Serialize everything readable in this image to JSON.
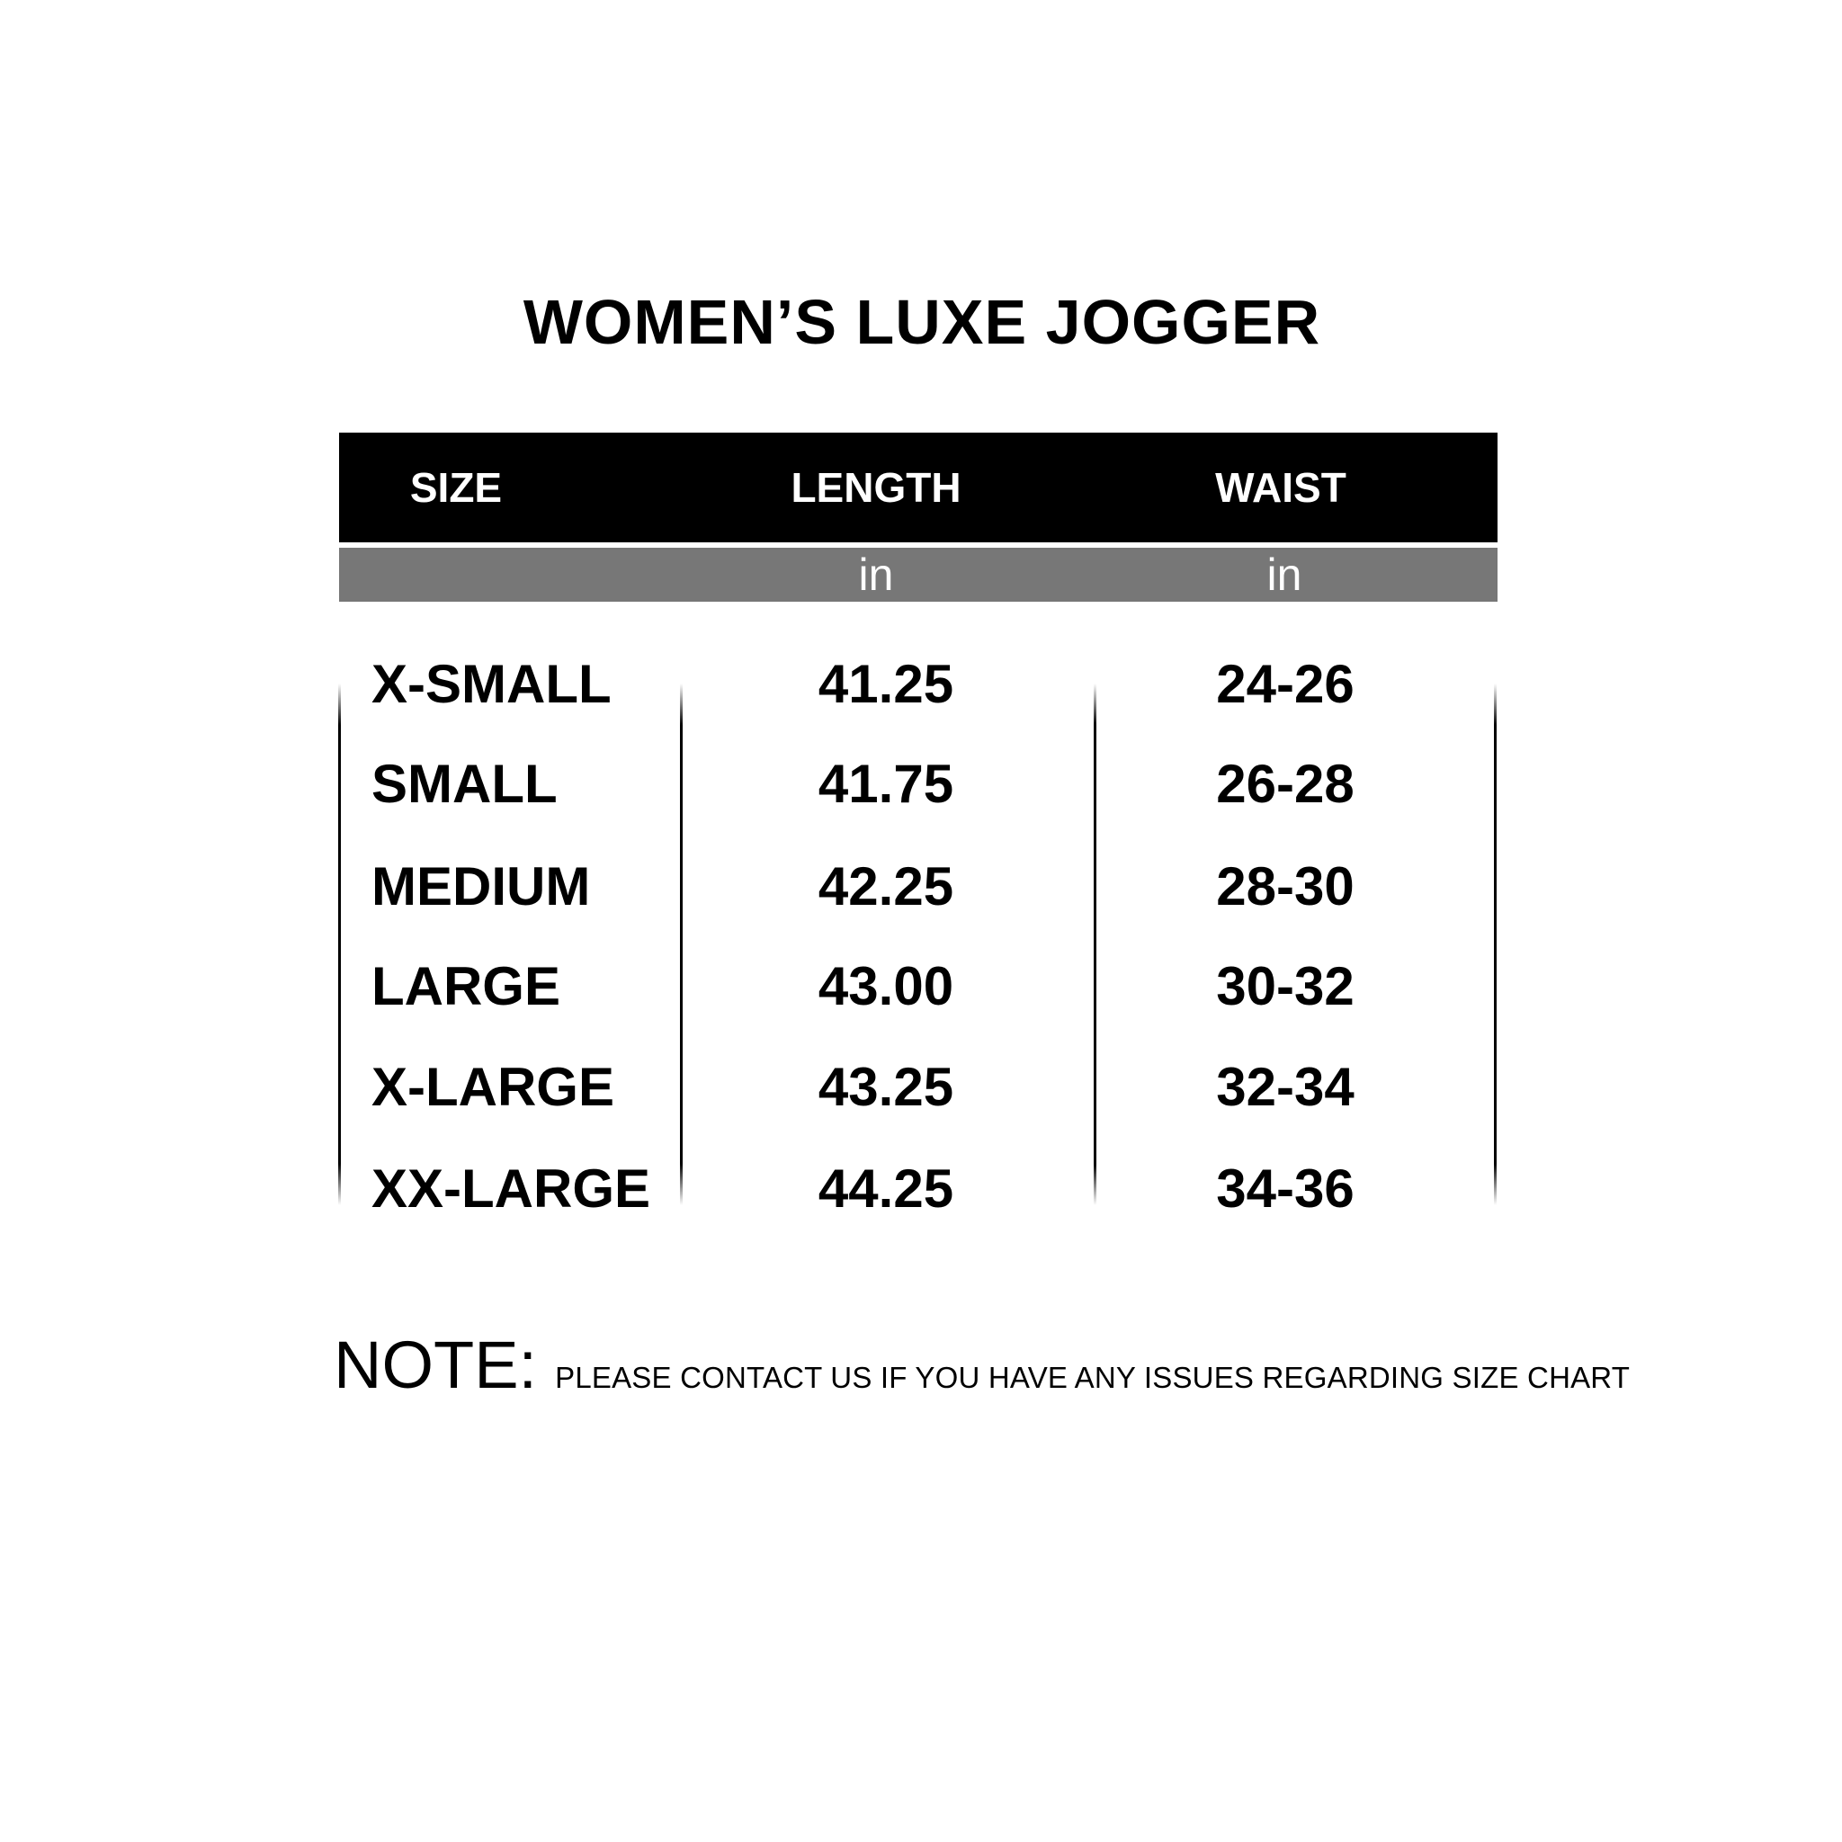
{
  "title": "WOMEN’S LUXE JOGGER",
  "table": {
    "headers": [
      "SIZE",
      "LENGTH",
      "WAIST"
    ],
    "units": [
      "",
      "in",
      "in"
    ],
    "rows": [
      {
        "size": "X-SMALL",
        "length": "41.25",
        "waist": "24-26"
      },
      {
        "size": "SMALL",
        "length": "41.75",
        "waist": "26-28"
      },
      {
        "size": "MEDIUM",
        "length": "42.25",
        "waist": "28-30"
      },
      {
        "size": "LARGE",
        "length": "43.00",
        "waist": "30-32"
      },
      {
        "size": "X-LARGE",
        "length": "43.25",
        "waist": "32-34"
      },
      {
        "size": "XX-LARGE",
        "length": "44.25",
        "waist": "34-36"
      }
    ],
    "colors": {
      "header_bg": "#000000",
      "units_bg": "#777777"
    }
  },
  "note": {
    "label": "NOTE:",
    "text": "PLEASE CONTACT US IF YOU HAVE ANY ISSUES REGARDING SIZE CHART"
  }
}
